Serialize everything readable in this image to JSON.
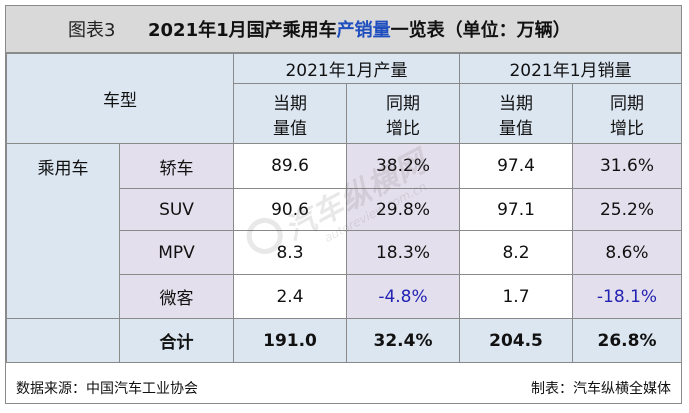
{
  "title": {
    "label": "图表3",
    "text_before": "2021年1月国产乘用车",
    "text_highlight": "产销量",
    "text_after": "一览表（单位：万辆）"
  },
  "header": {
    "model": "车型",
    "production_group": "2021年1月产量",
    "sales_group": "2021年1月销量",
    "current_1": "当期",
    "current_2": "量值",
    "yoy_1": "同期",
    "yoy_2": "增比"
  },
  "category": "乘用车",
  "rows": [
    {
      "name": "轿车",
      "prod": "89.6",
      "prod_yoy": "38.2%",
      "sales": "97.4",
      "sales_yoy": "31.6%"
    },
    {
      "name": "SUV",
      "prod": "90.6",
      "prod_yoy": "29.8%",
      "sales": "97.1",
      "sales_yoy": "25.2%"
    },
    {
      "name": "MPV",
      "prod": "8.3",
      "prod_yoy": "18.3%",
      "sales": "8.2",
      "sales_yoy": "8.6%"
    },
    {
      "name": "微客",
      "prod": "2.4",
      "prod_yoy": "-4.8%",
      "sales": "1.7",
      "sales_yoy": "-18.1%"
    }
  ],
  "total": {
    "name": "合计",
    "prod": "191.0",
    "prod_yoy": "32.4%",
    "sales": "204.5",
    "sales_yoy": "26.8%"
  },
  "footer": {
    "source": "数据来源：中国汽车工业协会",
    "maker": "制表：汽车纵横全媒体"
  },
  "watermark": {
    "text": "汽车纵横网",
    "sub": "autoreview.com.cn"
  },
  "colors": {
    "header_bg": "#dce6f1",
    "subcategory_bg": "#e4dfec",
    "title_bg": "#d9d9d9",
    "highlight": "#1f4fbf",
    "negative": "#2323b3"
  }
}
